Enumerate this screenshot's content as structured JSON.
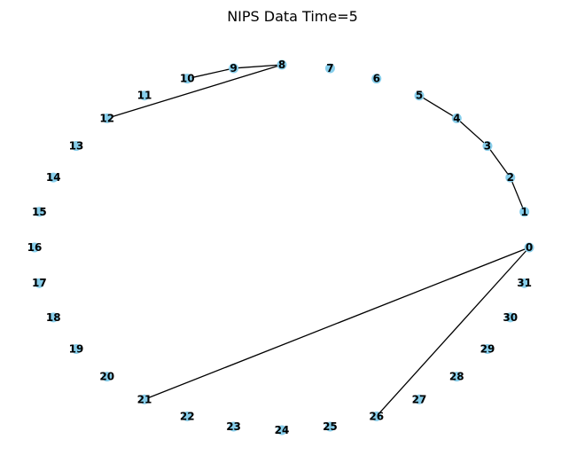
{
  "title": "NIPS Data Time=5",
  "graph": {
    "nodes": [
      "0",
      "1",
      "2",
      "3",
      "4",
      "5",
      "6",
      "7",
      "8",
      "9",
      "10",
      "11",
      "12",
      "13",
      "14",
      "15",
      "16",
      "17",
      "18",
      "19",
      "20",
      "21",
      "22",
      "23",
      "24",
      "25",
      "26",
      "27",
      "28",
      "29",
      "30",
      "31"
    ],
    "edges": [
      [
        "1",
        "2"
      ],
      [
        "2",
        "3"
      ],
      [
        "3",
        "4"
      ],
      [
        "4",
        "5"
      ],
      [
        "8",
        "9"
      ],
      [
        "9",
        "10"
      ],
      [
        "8",
        "12"
      ],
      [
        "0",
        "21"
      ],
      [
        "0",
        "26"
      ]
    ],
    "node_color": "#87ceeb",
    "edge_color": "#000000",
    "layout": "circular"
  }
}
